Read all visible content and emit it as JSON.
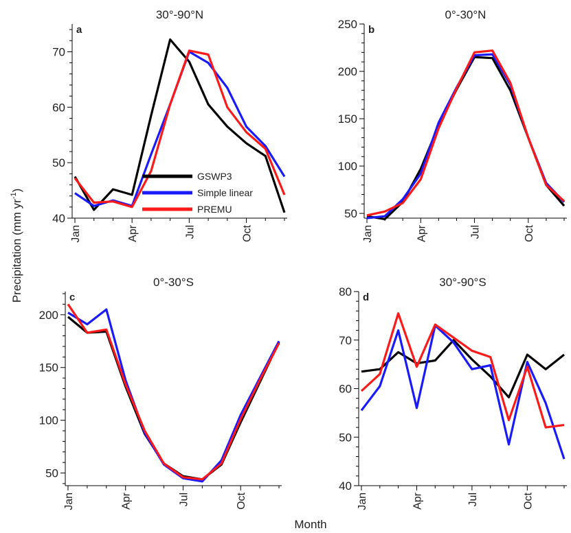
{
  "figure": {
    "y_label_main": "Precipitation (mm yr",
    "y_label_sup": "-1",
    "y_label_close": ")",
    "x_label": "Month"
  },
  "legend": {
    "entries": [
      {
        "label": "GSWP3",
        "color": "#000000"
      },
      {
        "label": "Simple linear",
        "color": "#1a1aff"
      },
      {
        "label": "PREMU",
        "color": "#ff1a1a"
      }
    ]
  },
  "chart_data": [
    {
      "type": "line",
      "panel": "a",
      "title": "30°-90°N",
      "x": [
        "Jan",
        "Feb",
        "Mar",
        "Apr",
        "May",
        "Jun",
        "Jul",
        "Aug",
        "Sep",
        "Oct",
        "Nov",
        "Dec"
      ],
      "x_tick_labels": [
        "Jan",
        "Apr",
        "Jul",
        "Oct"
      ],
      "yticks": [
        40,
        50,
        60,
        70
      ],
      "ylim": [
        40,
        75
      ],
      "series": [
        {
          "name": "GSWP3",
          "color": "#000000",
          "values": [
            47.5,
            41.5,
            45.2,
            44.2,
            58.5,
            72.2,
            68.2,
            60.5,
            56.5,
            53.5,
            51.2,
            41.0
          ]
        },
        {
          "name": "Simple linear",
          "color": "#1a1aff",
          "values": [
            44.5,
            42.2,
            43.2,
            42.2,
            51.5,
            60.5,
            70.0,
            68.0,
            63.5,
            56.5,
            53.0,
            47.5
          ]
        },
        {
          "name": "PREMU",
          "color": "#ff1a1a",
          "values": [
            47.2,
            42.8,
            43.0,
            42.0,
            48.5,
            60.5,
            70.2,
            69.5,
            60.0,
            55.5,
            52.5,
            44.2
          ]
        }
      ]
    },
    {
      "type": "line",
      "panel": "b",
      "title": "0°-30°N",
      "x": [
        "Jan",
        "Feb",
        "Mar",
        "Apr",
        "May",
        "Jun",
        "Jul",
        "Aug",
        "Sep",
        "Oct",
        "Nov",
        "Dec"
      ],
      "x_tick_labels": [
        "Jan",
        "Apr",
        "Jul",
        "Oct"
      ],
      "yticks": [
        50,
        100,
        150,
        200,
        250
      ],
      "ylim": [
        45,
        250
      ],
      "series": [
        {
          "name": "GSWP3",
          "color": "#000000",
          "values": [
            47,
            44,
            62,
            97,
            143,
            181,
            215,
            214,
            180,
            130,
            80,
            58
          ]
        },
        {
          "name": "Simple linear",
          "color": "#1a1aff",
          "values": [
            45,
            47,
            65,
            92,
            146,
            183,
            217,
            218,
            186,
            130,
            82,
            62
          ]
        },
        {
          "name": "PREMU",
          "color": "#ff1a1a",
          "values": [
            48,
            52,
            61,
            86,
            140,
            182,
            220,
            222,
            188,
            130,
            80,
            63
          ]
        }
      ]
    },
    {
      "type": "line",
      "panel": "c",
      "title": "0°-30°S",
      "x": [
        "Jan",
        "Feb",
        "Mar",
        "Apr",
        "May",
        "Jun",
        "Jul",
        "Aug",
        "Sep",
        "Oct",
        "Nov",
        "Dec"
      ],
      "x_tick_labels": [
        "Jan",
        "Apr",
        "Jul",
        "Oct"
      ],
      "yticks": [
        50,
        100,
        150,
        200
      ],
      "ylim": [
        38,
        222
      ],
      "series": [
        {
          "name": "GSWP3",
          "color": "#000000",
          "values": [
            198,
            183,
            184,
            132,
            87,
            59,
            47,
            44,
            58,
            98,
            136,
            174
          ]
        },
        {
          "name": "Simple linear",
          "color": "#1a1aff",
          "values": [
            202,
            191,
            205,
            138,
            88,
            58,
            45,
            42,
            62,
            105,
            140,
            175
          ]
        },
        {
          "name": "PREMU",
          "color": "#ff1a1a",
          "values": [
            210,
            183,
            186,
            134,
            90,
            59,
            46,
            44,
            59,
            101,
            138,
            173
          ]
        }
      ]
    },
    {
      "type": "line",
      "panel": "d",
      "title": "30°-90°S",
      "x": [
        "Jan",
        "Feb",
        "Mar",
        "Apr",
        "May",
        "Jun",
        "Jul",
        "Aug",
        "Sep",
        "Oct",
        "Nov",
        "Dec"
      ],
      "x_tick_labels": [
        "Jan",
        "Apr",
        "Jul",
        "Oct"
      ],
      "yticks": [
        40,
        50,
        60,
        70,
        80
      ],
      "ylim": [
        40,
        80
      ],
      "series": [
        {
          "name": "GSWP3",
          "color": "#000000",
          "values": [
            63.5,
            64.0,
            67.5,
            65.2,
            65.8,
            70.0,
            66.0,
            62.5,
            58.2,
            67.0,
            64.0,
            67.0
          ]
        },
        {
          "name": "Simple linear",
          "color": "#1a1aff",
          "values": [
            55.5,
            60.5,
            72.0,
            56.0,
            73.0,
            69.5,
            64.0,
            64.8,
            48.5,
            65.5,
            57.0,
            45.5
          ]
        },
        {
          "name": "PREMU",
          "color": "#ff1a1a",
          "values": [
            59.5,
            63.0,
            75.5,
            64.5,
            73.2,
            70.5,
            67.8,
            66.5,
            53.5,
            64.5,
            52.0,
            52.5
          ]
        }
      ]
    }
  ]
}
